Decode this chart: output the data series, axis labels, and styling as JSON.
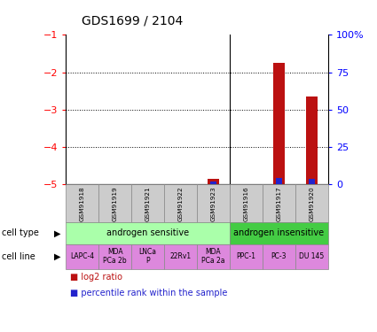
{
  "title": "GDS1699 / 2104",
  "samples": [
    "GSM91918",
    "GSM91919",
    "GSM91921",
    "GSM91922",
    "GSM91923",
    "GSM91916",
    "GSM91917",
    "GSM91920"
  ],
  "log2_ratio": [
    null,
    null,
    null,
    null,
    -4.85,
    null,
    -1.75,
    -2.65
  ],
  "percentile_rank": [
    null,
    null,
    null,
    null,
    2.0,
    null,
    4.0,
    3.5
  ],
  "left_ylim": [
    -5,
    -1
  ],
  "left_yticks": [
    -5,
    -4,
    -3,
    -2,
    -1
  ],
  "right_ylim": [
    0,
    100
  ],
  "right_yticks": [
    0,
    25,
    50,
    75,
    100
  ],
  "right_yticklabels": [
    "0",
    "25",
    "50",
    "75",
    "100%"
  ],
  "cell_lines": [
    "LAPC-4",
    "MDA\nPCa 2b",
    "LNCa\nP",
    "22Rv1",
    "MDA\nPCa 2a",
    "PPC-1",
    "PC-3",
    "DU 145"
  ],
  "cell_type_sensitive_label": "androgen sensitive",
  "cell_type_insensitive_label": "androgen insensitive",
  "bar_color_log2": "#bb1111",
  "bar_color_percentile": "#2222cc",
  "color_sensitive": "#aaffaa",
  "color_insensitive": "#44cc44",
  "color_cell_line": "#dd88dd",
  "color_sample_bg": "#cccccc",
  "n_sensitive": 5,
  "n_insensitive": 3,
  "bar_width": 0.35,
  "pct_bar_width": 0.18
}
